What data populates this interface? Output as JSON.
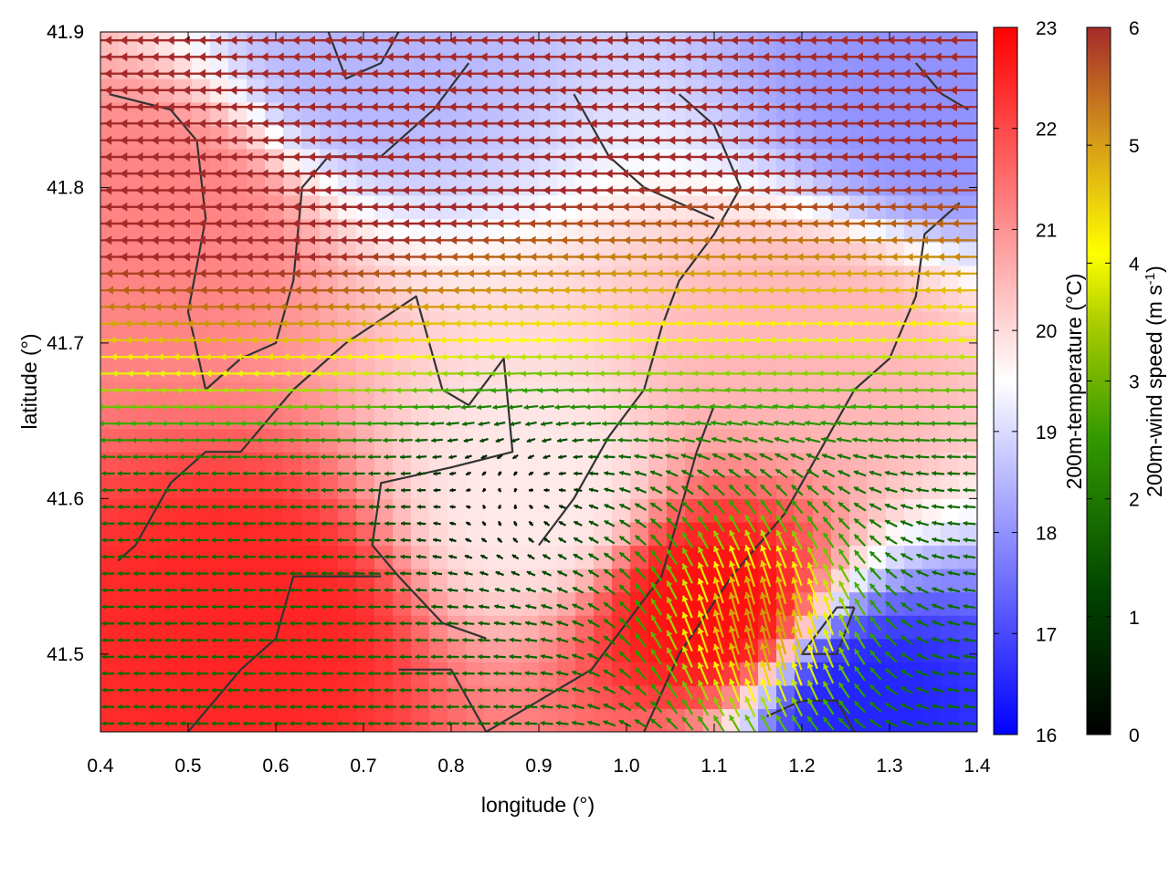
{
  "chart_data": {
    "type": "heatmap",
    "title": "",
    "xlabel": "longitude (°)",
    "ylabel": "latitude (°)",
    "xlim": [
      0.4,
      1.4
    ],
    "ylim": [
      41.45,
      41.9
    ],
    "x_ticks": [
      "0.4",
      "0.5",
      "0.6",
      "0.7",
      "0.8",
      "0.9",
      "1.0",
      "1.1",
      "1.2",
      "1.3",
      "1.4"
    ],
    "y_ticks": [
      "41.5",
      "41.6",
      "41.7",
      "41.8",
      "41.9"
    ],
    "color_field": {
      "label": "200m-temperature (°C)",
      "range": [
        16,
        23
      ],
      "ticks": [
        "16",
        "17",
        "18",
        "19",
        "20",
        "21",
        "22",
        "23"
      ],
      "colormap": [
        "#0000ff",
        "#ffffff",
        "#ff0000"
      ],
      "approx_regions": [
        {
          "lon": 0.48,
          "lat": 41.78,
          "value": 21.2
        },
        {
          "lon": 0.58,
          "lat": 41.52,
          "value": 22.5
        },
        {
          "lon": 0.9,
          "lat": 41.6,
          "value": 19.8
        },
        {
          "lon": 1.1,
          "lat": 41.53,
          "value": 22.8
        },
        {
          "lon": 1.27,
          "lat": 41.47,
          "value": 16.5
        },
        {
          "lon": 1.35,
          "lat": 41.85,
          "value": 18.0
        },
        {
          "lon": 0.7,
          "lat": 41.88,
          "value": 18.5
        },
        {
          "lon": 1.22,
          "lat": 41.7,
          "value": 20.5
        }
      ]
    },
    "vector_field": {
      "label": "200m-wind speed (m s-1)",
      "label_main": "200m-wind speed (m s",
      "label_sup": "-1",
      "label_end": ")",
      "range": [
        0,
        6
      ],
      "ticks": [
        "0",
        "1",
        "2",
        "3",
        "4",
        "5",
        "6"
      ],
      "colormap": [
        "#000000",
        "#005500",
        "#33aa00",
        "#ffff00",
        "#c8860a",
        "#a52a2a"
      ],
      "description": "wind arrows on regular grid; strong easterly flow (arrows pointing west) in north, weak/convergent flow around (0.88, 41.6), southerly flow in south-east"
    },
    "contour_color": "#333333"
  }
}
